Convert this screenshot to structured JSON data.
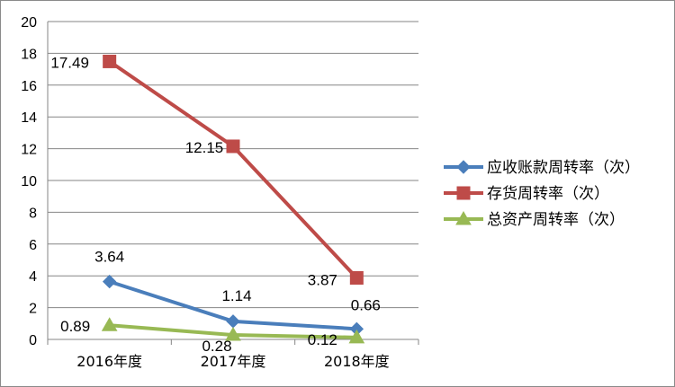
{
  "chart_data": {
    "type": "line",
    "categories": [
      "2016年度",
      "2017年度",
      "2018年度"
    ],
    "ylim": [
      0,
      20
    ],
    "yticks": [
      "0",
      "2",
      "4",
      "6",
      "8",
      "10",
      "12",
      "14",
      "16",
      "18",
      "20"
    ],
    "grid": true,
    "legend_position": "right",
    "series": [
      {
        "name": "应收账款周转率（次）",
        "values": [
          3.64,
          1.14,
          0.66
        ],
        "labels": [
          "3.64",
          "1.14",
          "0.66"
        ],
        "color": "#4a7ebb",
        "marker": "diamond"
      },
      {
        "name": "存货周转率（次）",
        "values": [
          17.49,
          12.15,
          3.87
        ],
        "labels": [
          "17.49",
          "12.15",
          "3.87"
        ],
        "color": "#be4b48",
        "marker": "square"
      },
      {
        "name": "总资产周转率（次）",
        "values": [
          0.89,
          0.28,
          0.12
        ],
        "labels": [
          "0.89",
          "0.28",
          "0.12"
        ],
        "color": "#98b954",
        "marker": "triangle"
      }
    ]
  }
}
